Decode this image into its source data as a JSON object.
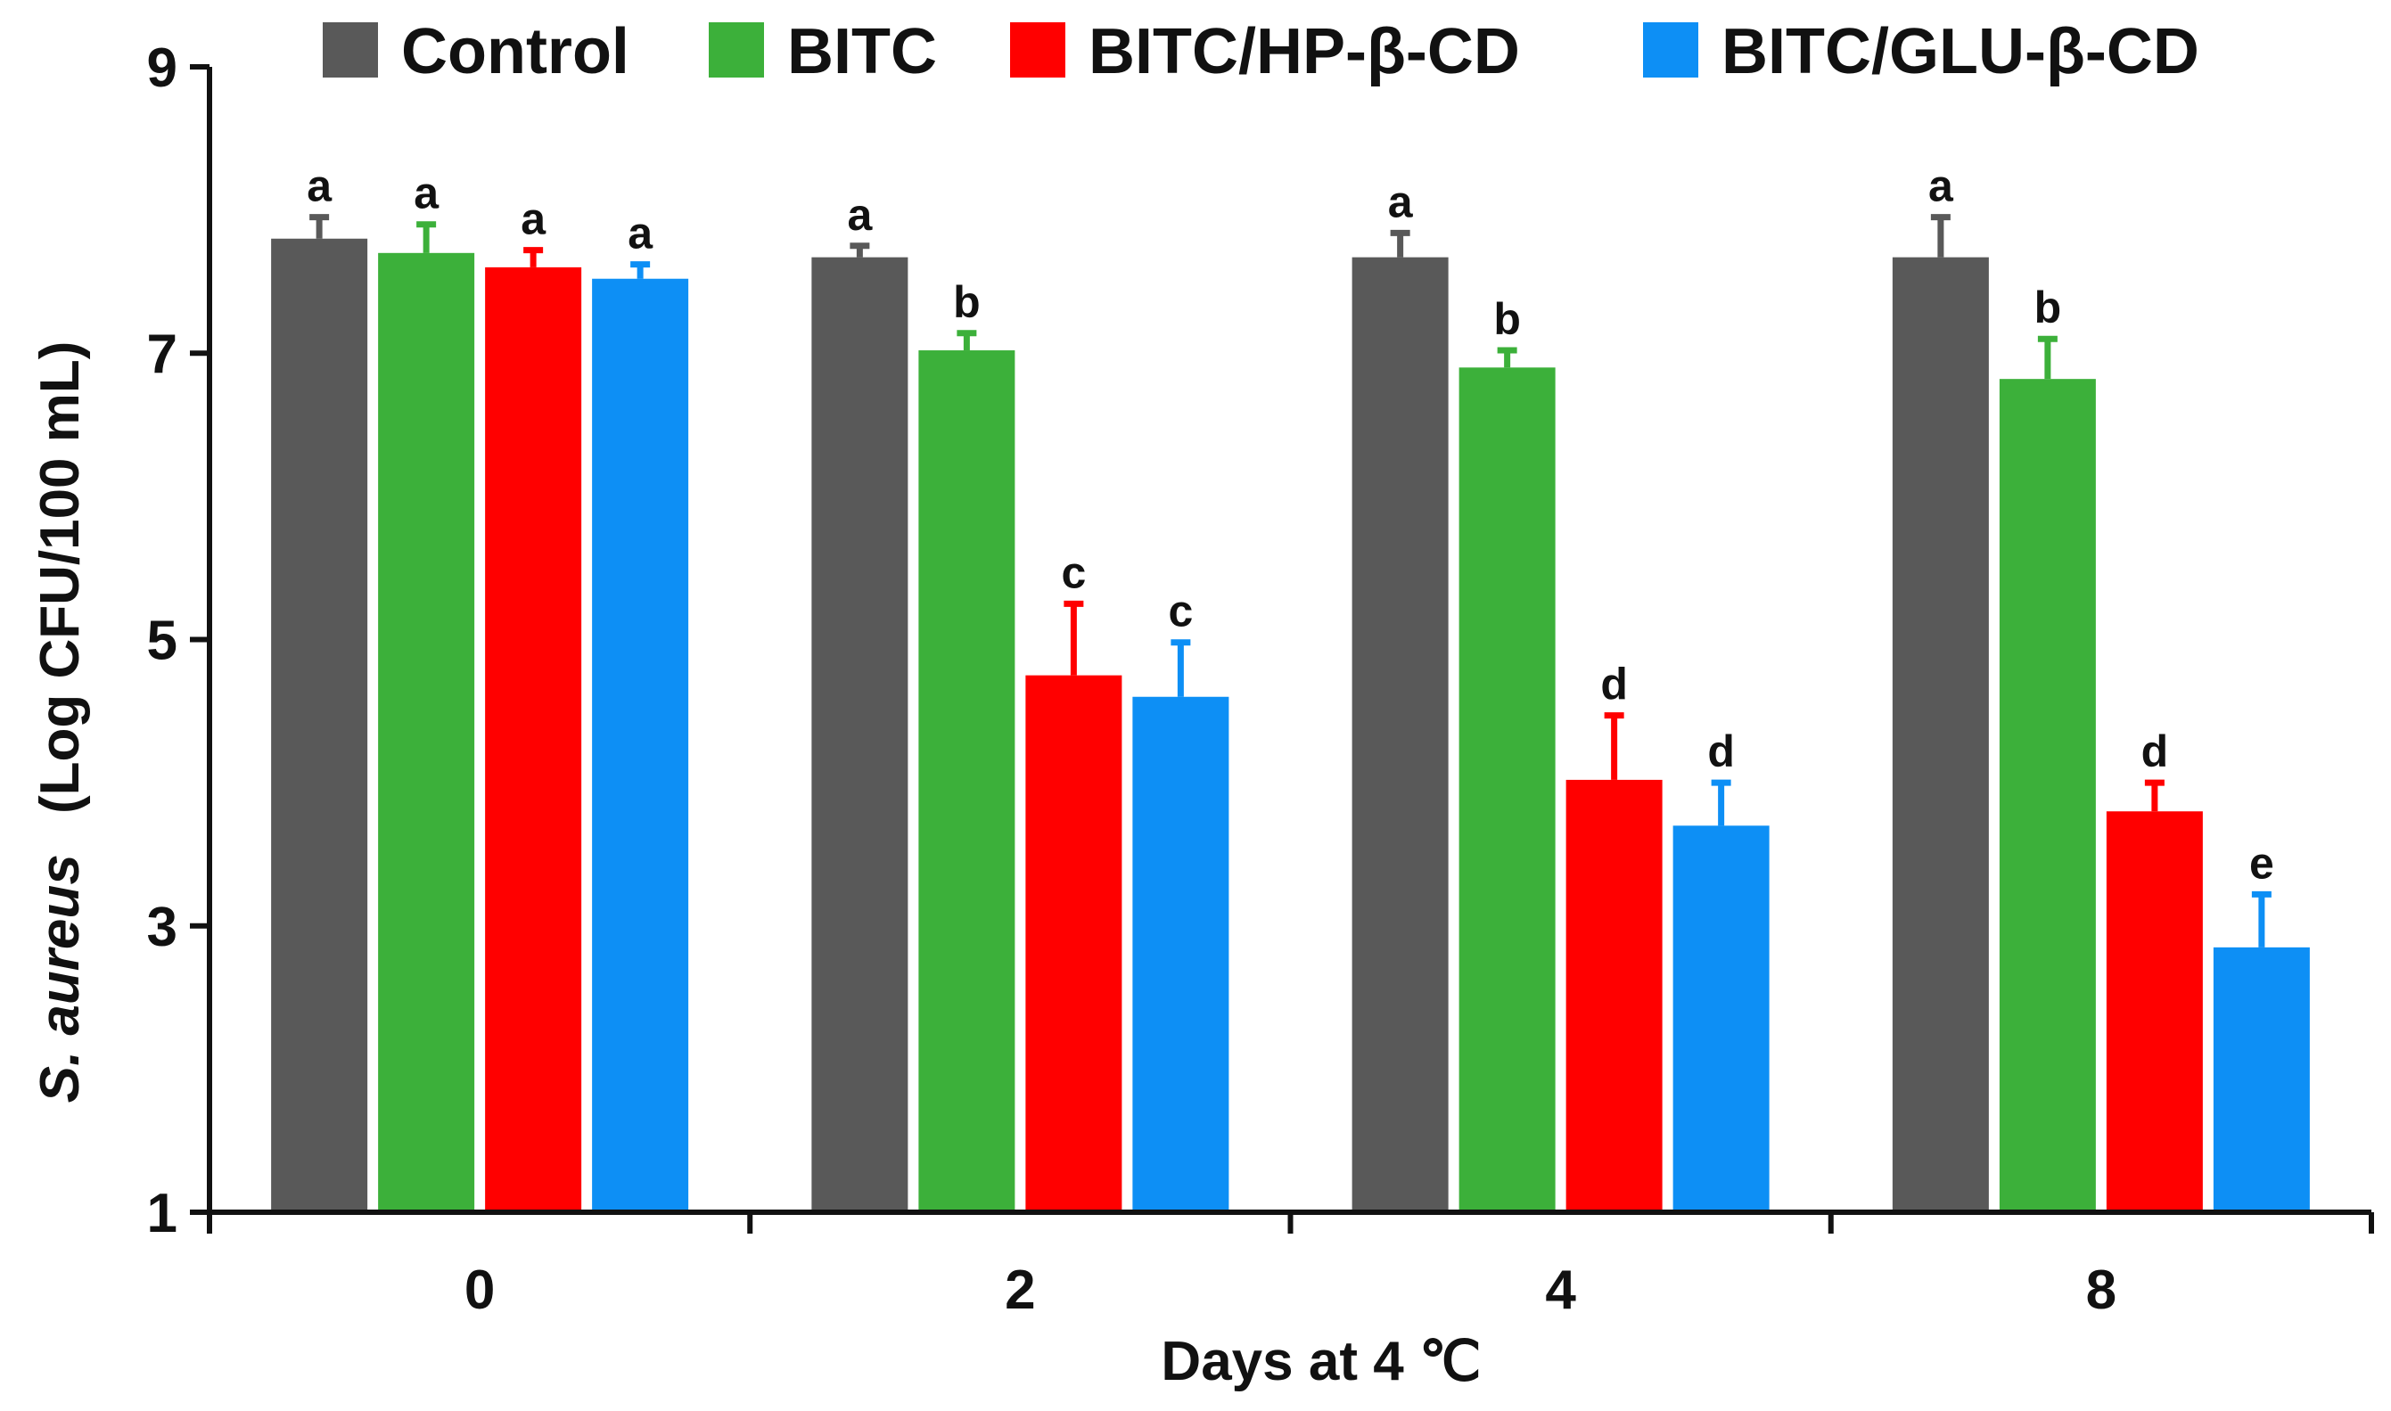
{
  "chart_data": {
    "type": "bar",
    "title": "",
    "xlabel": "Days at 4 ℃",
    "ylabel_italic": "S. aureus",
    "ylabel_rest": "(Log CFU/100 mL)",
    "categories": [
      "0",
      "2",
      "4",
      "8"
    ],
    "yticks": [
      "1",
      "3",
      "5",
      "7",
      "9"
    ],
    "ylim": [
      1,
      9
    ],
    "grid": false,
    "legend_position": "top",
    "series": [
      {
        "name": "Control",
        "color": "#595959",
        "values": [
          7.8,
          7.67,
          7.67,
          7.67
        ],
        "errors": [
          0.15,
          0.08,
          0.17,
          0.28
        ],
        "labels": [
          "a",
          "a",
          "a",
          "a"
        ]
      },
      {
        "name": "BITC",
        "color": "#3cb03a",
        "values": [
          7.7,
          7.02,
          6.9,
          6.82
        ],
        "errors": [
          0.2,
          0.12,
          0.12,
          0.28
        ],
        "labels": [
          "a",
          "b",
          "b",
          "b"
        ]
      },
      {
        "name": "BITC/HP-β-CD",
        "color": "#ff0000",
        "values": [
          7.6,
          4.75,
          4.02,
          3.8
        ],
        "errors": [
          0.12,
          0.5,
          0.45,
          0.2
        ],
        "labels": [
          "a",
          "c",
          "d",
          "d"
        ]
      },
      {
        "name": "BITC/GLU-β-CD",
        "color": "#0d8ff5",
        "values": [
          7.52,
          4.6,
          3.7,
          2.85
        ],
        "errors": [
          0.1,
          0.38,
          0.3,
          0.37
        ],
        "labels": [
          "a",
          "c",
          "d",
          "e"
        ]
      }
    ]
  }
}
